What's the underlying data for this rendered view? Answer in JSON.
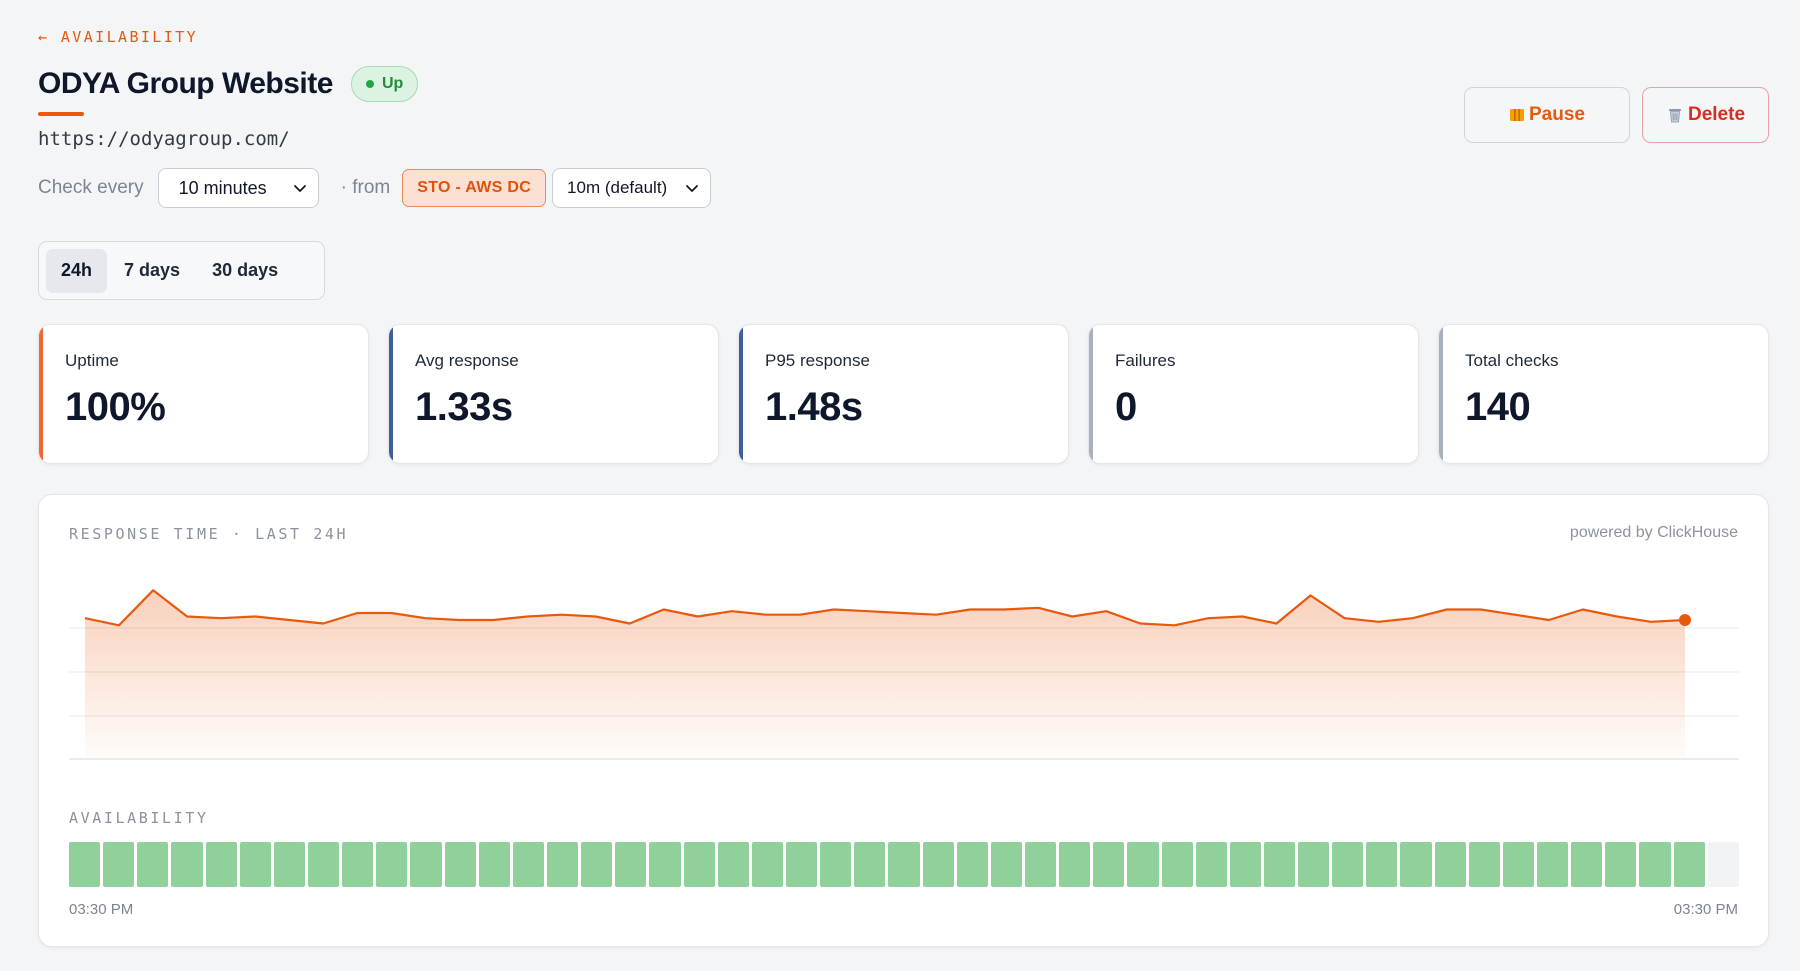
{
  "header": {
    "back_label": "← AVAILABILITY",
    "title": "ODYA Group Website",
    "status": "Up",
    "url": "https://odyagroup.com/"
  },
  "check": {
    "label": "Check every",
    "interval": "10 minutes",
    "from_label": "· from",
    "region": "STO - AWS DC",
    "region_interval": "10m (default)"
  },
  "actions": {
    "pause_label": "Pause",
    "pause_icon": "pause-icon",
    "delete_label": "Delete",
    "delete_icon": "trash-icon"
  },
  "range_tabs": [
    {
      "label": "24h",
      "active": true
    },
    {
      "label": "7 days",
      "active": false
    },
    {
      "label": "30 days",
      "active": false
    }
  ],
  "stats": [
    {
      "label": "Uptime",
      "value": "100%",
      "accent": "#ef6a2e"
    },
    {
      "label": "Avg response",
      "value": "1.33s",
      "accent": "#3f5f99"
    },
    {
      "label": "P95 response",
      "value": "1.48s",
      "accent": "#3f5f99"
    },
    {
      "label": "Failures",
      "value": "0",
      "accent": "#a7b0bd"
    },
    {
      "label": "Total checks",
      "value": "140",
      "accent": "#a7b0bd"
    }
  ],
  "chart": {
    "title": "RESPONSE TIME · LAST 24H",
    "powered_by": "powered by ClickHouse",
    "availability_title": "AVAILABILITY",
    "time_start": "03:30 PM",
    "time_end": "03:30 PM",
    "line_color": "#e8590c",
    "availability_color": "#90d09b",
    "availability": {
      "up_segments": 48,
      "empty_segments": 1
    }
  },
  "chart_data": {
    "type": "area",
    "title": "RESPONSE TIME · LAST 24H",
    "xlabel": "",
    "ylabel": "",
    "grid": true,
    "values": [
      1.33,
      1.29,
      1.49,
      1.34,
      1.33,
      1.34,
      1.32,
      1.3,
      1.36,
      1.36,
      1.33,
      1.32,
      1.32,
      1.34,
      1.35,
      1.34,
      1.3,
      1.38,
      1.34,
      1.37,
      1.35,
      1.35,
      1.38,
      1.37,
      1.36,
      1.35,
      1.38,
      1.38,
      1.39,
      1.34,
      1.37,
      1.3,
      1.29,
      1.33,
      1.34,
      1.3,
      1.46,
      1.33,
      1.31,
      1.33,
      1.38,
      1.38,
      1.35,
      1.32,
      1.38,
      1.34,
      1.31,
      1.32
    ],
    "ylim": [
      0,
      2
    ]
  }
}
